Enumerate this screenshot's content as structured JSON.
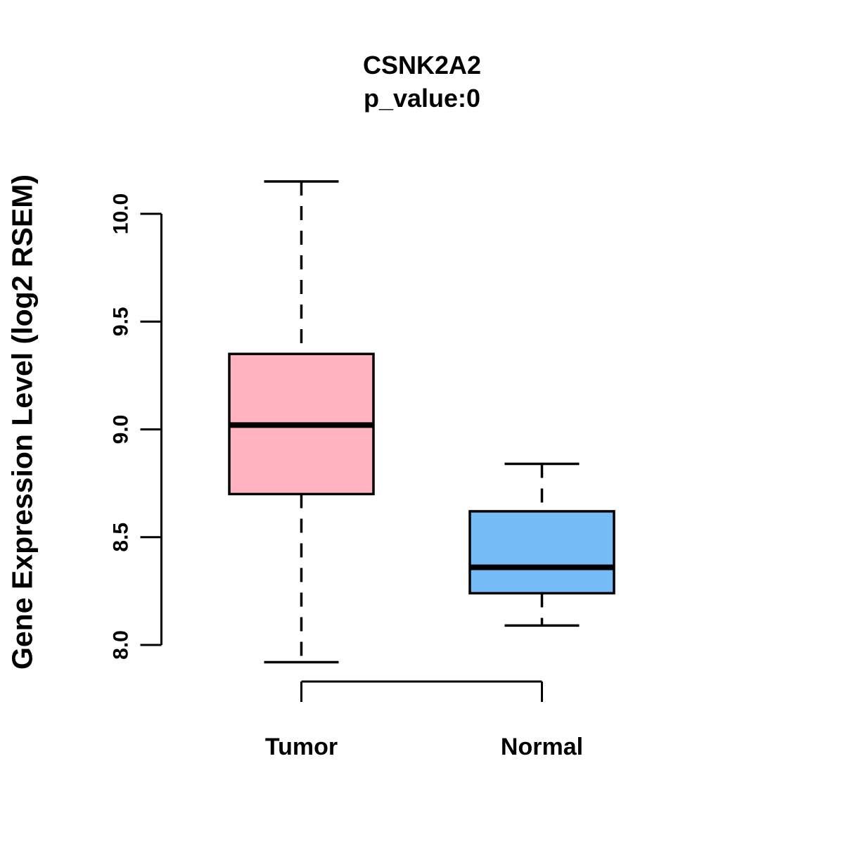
{
  "chart_data": {
    "type": "boxplot",
    "title": "CSNK2A2",
    "subtitle": "p_value:0",
    "xlabel": "",
    "ylabel": "Gene Expression Level (log2 RSEM)",
    "categories": [
      "Tumor",
      "Normal"
    ],
    "series": [
      {
        "name": "Tumor",
        "lower_whisker": 7.92,
        "q1": 8.7,
        "median": 9.02,
        "q3": 9.35,
        "upper_whisker": 10.15,
        "fill_color": "#FFB3C1"
      },
      {
        "name": "Normal",
        "lower_whisker": 8.09,
        "q1": 8.24,
        "median": 8.36,
        "q3": 8.62,
        "upper_whisker": 8.84,
        "fill_color": "#76BDF8"
      }
    ],
    "y_ticks": [
      8.0,
      8.5,
      9.0,
      9.5,
      10.0
    ],
    "y_tick_labels": [
      "8.0",
      "8.5",
      "9.0",
      "9.5",
      "10.0"
    ],
    "y_axis_range": [
      8.0,
      10.0
    ],
    "grid": false,
    "legend": "none",
    "whisker_line_style": "dashed",
    "box_border_color": "#000000",
    "median_color": "#000000",
    "axis_color": "#000000",
    "background_color": "#FFFFFF"
  }
}
